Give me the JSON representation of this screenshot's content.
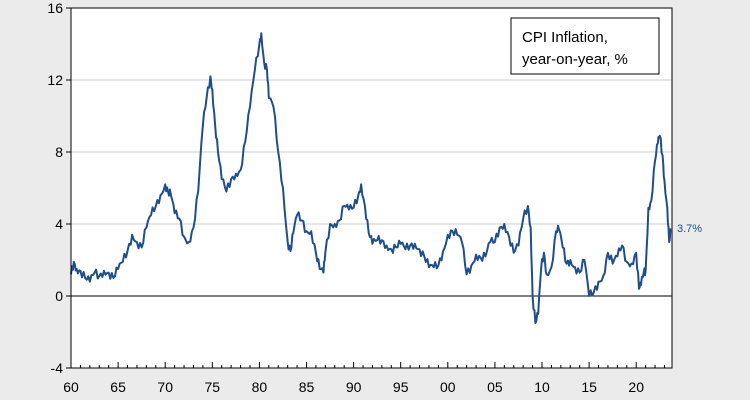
{
  "chart_data": {
    "type": "line",
    "legend_lines": [
      "CPI Inflation,",
      "year-on-year, %"
    ],
    "legend_placement": "top-right",
    "end_label": "3.7%",
    "colors": {
      "series": "#1f4e8c",
      "background": "#ffffff",
      "frame": "#000000",
      "grid": "#cfcfcf"
    },
    "grid": true,
    "xlim": [
      1960,
      2023.8
    ],
    "ylim": [
      -4,
      16
    ],
    "y_ticks": [
      -4,
      0,
      4,
      8,
      12,
      16
    ],
    "x_ticks": [
      {
        "value": 1960,
        "label": "60"
      },
      {
        "value": 1965,
        "label": "65"
      },
      {
        "value": 1970,
        "label": "70"
      },
      {
        "value": 1975,
        "label": "75"
      },
      {
        "value": 1980,
        "label": "80"
      },
      {
        "value": 1985,
        "label": "85"
      },
      {
        "value": 1990,
        "label": "90"
      },
      {
        "value": 1995,
        "label": "95"
      },
      {
        "value": 2000,
        "label": "00"
      },
      {
        "value": 2005,
        "label": "05"
      },
      {
        "value": 2010,
        "label": "10"
      },
      {
        "value": 2015,
        "label": "15"
      },
      {
        "value": 2020,
        "label": "20"
      }
    ],
    "series": [
      {
        "x": [
          1960.0,
          1960.3,
          1960.6,
          1961.0,
          1961.5,
          1962.0,
          1962.5,
          1963.0,
          1963.5,
          1964.0,
          1964.5,
          1965.0,
          1965.5,
          1966.0,
          1966.5,
          1967.0,
          1967.5,
          1968.0,
          1968.5,
          1969.0,
          1969.5,
          1970.0,
          1970.3,
          1970.6,
          1971.0,
          1971.5,
          1972.0,
          1972.5,
          1973.0,
          1973.5,
          1974.0,
          1974.4,
          1974.8,
          1975.0,
          1975.3,
          1975.6,
          1976.0,
          1976.5,
          1977.0,
          1977.5,
          1978.0,
          1978.5,
          1979.0,
          1979.5,
          1980.0,
          1980.2,
          1980.5,
          1980.8,
          1981.0,
          1981.5,
          1982.0,
          1982.5,
          1983.0,
          1983.3,
          1983.6,
          1984.0,
          1984.5,
          1985.0,
          1985.5,
          1986.0,
          1986.4,
          1986.8,
          1987.0,
          1987.5,
          1988.0,
          1988.5,
          1989.0,
          1989.5,
          1990.0,
          1990.5,
          1990.8,
          1991.2,
          1991.6,
          1992.0,
          1992.5,
          1993.0,
          1993.5,
          1994.0,
          1994.5,
          1995.0,
          1995.5,
          1996.0,
          1996.5,
          1997.0,
          1997.5,
          1998.0,
          1998.5,
          1999.0,
          1999.5,
          2000.0,
          2000.5,
          2001.0,
          2001.5,
          2002.0,
          2002.5,
          2003.0,
          2003.5,
          2004.0,
          2004.5,
          2005.0,
          2005.5,
          2006.0,
          2006.5,
          2007.0,
          2007.5,
          2008.0,
          2008.5,
          2008.8,
          2009.0,
          2009.3,
          2009.6,
          2009.9,
          2010.2,
          2010.5,
          2011.0,
          2011.5,
          2011.8,
          2012.2,
          2012.6,
          2013.0,
          2013.5,
          2014.0,
          2014.5,
          2015.0,
          2015.5,
          2016.0,
          2016.5,
          2017.0,
          2017.5,
          2018.0,
          2018.5,
          2019.0,
          2019.5,
          2020.0,
          2020.3,
          2020.5,
          2020.8,
          2021.0,
          2021.3,
          2021.6,
          2022.0,
          2022.3,
          2022.5,
          2022.8,
          2023.0,
          2023.3,
          2023.5,
          2023.7
        ],
        "y": [
          1.2,
          1.9,
          1.5,
          1.4,
          1.0,
          0.8,
          1.3,
          1.1,
          1.4,
          1.3,
          1.0,
          1.5,
          1.9,
          2.5,
          3.4,
          3.0,
          2.7,
          3.8,
          4.5,
          5.0,
          5.6,
          6.2,
          5.8,
          5.6,
          4.6,
          4.3,
          3.3,
          3.0,
          3.8,
          5.8,
          9.5,
          11.0,
          12.2,
          11.5,
          9.5,
          8.0,
          6.5,
          5.8,
          6.5,
          6.8,
          7.0,
          8.6,
          10.5,
          12.5,
          14.0,
          14.6,
          13.0,
          12.6,
          11.0,
          10.5,
          8.0,
          6.0,
          3.0,
          2.5,
          3.5,
          4.5,
          4.2,
          3.6,
          3.6,
          2.4,
          1.5,
          1.3,
          2.4,
          4.0,
          4.0,
          4.2,
          5.0,
          4.8,
          4.9,
          5.6,
          6.2,
          5.0,
          3.5,
          2.9,
          3.1,
          3.1,
          2.8,
          2.6,
          2.7,
          2.9,
          2.6,
          2.8,
          2.9,
          2.6,
          2.2,
          1.6,
          1.6,
          1.7,
          2.5,
          3.4,
          3.6,
          3.4,
          3.0,
          1.2,
          1.7,
          2.3,
          2.1,
          2.2,
          3.0,
          3.0,
          3.8,
          4.0,
          3.3,
          2.4,
          2.8,
          4.3,
          5.0,
          3.8,
          0.0,
          -1.5,
          -1.0,
          1.5,
          2.4,
          1.2,
          1.6,
          3.6,
          3.7,
          2.7,
          1.8,
          2.0,
          1.6,
          1.3,
          2.0,
          0.0,
          0.2,
          0.8,
          1.1,
          2.4,
          1.8,
          2.2,
          2.8,
          1.9,
          1.8,
          2.4,
          0.4,
          0.6,
          1.3,
          1.4,
          4.9,
          5.3,
          7.5,
          8.5,
          8.9,
          7.8,
          6.4,
          4.9,
          3.0,
          3.7
        ]
      }
    ]
  }
}
